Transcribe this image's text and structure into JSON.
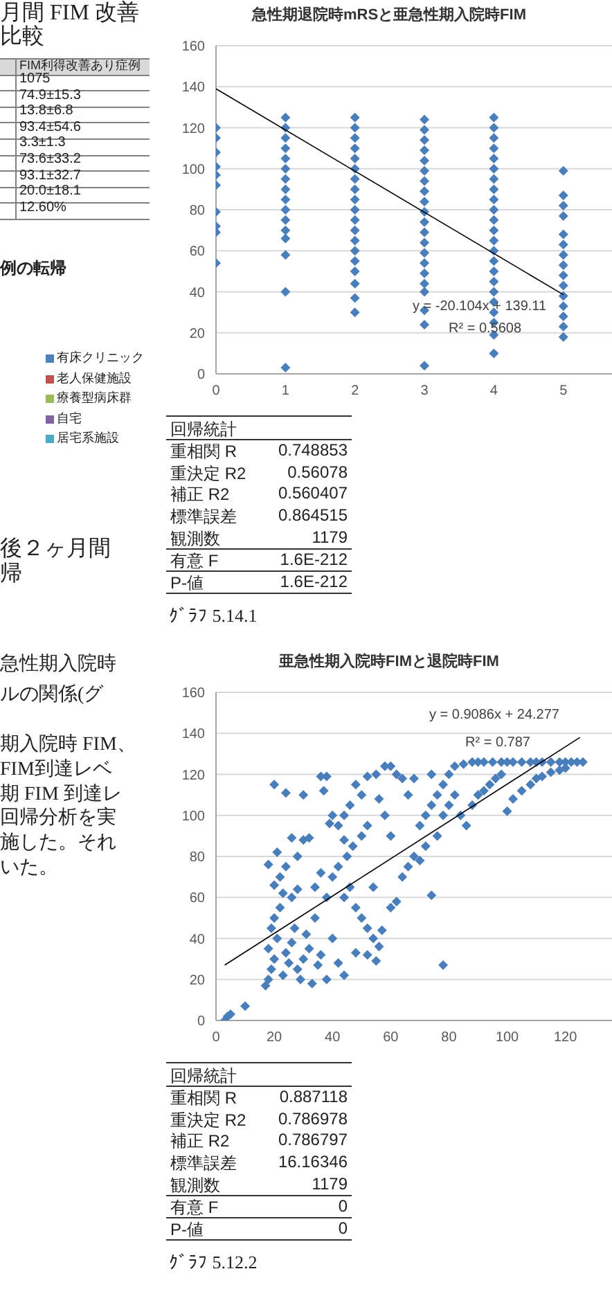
{
  "chart_data": [
    {
      "type": "other",
      "annotations": [
        "月間 FIM 改善",
        "比較",
        "FIM利得改善あり症例",
        "1075",
        "74.9±15.3",
        "13.8±6.8",
        "93.4±54.6",
        "3.3±1.3",
        "73.6±33.2",
        "93.1±32.7",
        "20.0±18.1",
        "12.60%",
        "例の転帰",
        "有床クリニック",
        "老人保健施設",
        "療養型病床群",
        "自宅",
        "居宅系施設",
        "後２ヶ月間",
        "帰",
        "急性期入院時",
        "ルの関係(グ",
        "期入院時 FIM、",
        "FIM到達レベ",
        "期 FIM 到達レ",
        "回帰分析を実",
        "施した。それ",
        "いた。"
      ]
    },
    {
      "type": "scatter",
      "title": "急性期退院時mRSと亜急性期入院時FIM",
      "xlim": [
        0,
        5.7
      ],
      "ylim": [
        0,
        160
      ],
      "xticks": [
        0,
        1,
        2,
        3,
        4,
        5
      ],
      "yticks": [
        0,
        20,
        40,
        60,
        80,
        100,
        120,
        140,
        160
      ],
      "grid": "y",
      "marker": "diamond",
      "series": [
        {
          "type": "scatter",
          "color": "#4a7ebb",
          "x": [
            0,
            0,
            0,
            0,
            0,
            0,
            0,
            0,
            0,
            0,
            1,
            1,
            1,
            1,
            1,
            1,
            1,
            1,
            1,
            1,
            1,
            1,
            1,
            1,
            1,
            1,
            2,
            2,
            2,
            2,
            2,
            2,
            2,
            2,
            2,
            2,
            2,
            2,
            2,
            2,
            2,
            2,
            2,
            2,
            2,
            3,
            3,
            3,
            3,
            3,
            3,
            3,
            3,
            3,
            3,
            3,
            3,
            3,
            3,
            3,
            3,
            3,
            3,
            3,
            3,
            3,
            4,
            4,
            4,
            4,
            4,
            4,
            4,
            4,
            4,
            4,
            4,
            4,
            4,
            4,
            4,
            4,
            4,
            4,
            4,
            4,
            4,
            4,
            4,
            5,
            5,
            5,
            5,
            5,
            5,
            5,
            5,
            5,
            5,
            5,
            5,
            5,
            5,
            5
          ],
          "values": [
            120,
            115,
            108,
            101,
            97,
            92,
            79,
            72,
            69,
            54,
            125,
            120,
            115,
            110,
            105,
            100,
            95,
            90,
            85,
            80,
            75,
            70,
            66,
            58,
            40,
            3,
            125,
            120,
            115,
            110,
            105,
            100,
            95,
            90,
            85,
            80,
            75,
            70,
            65,
            60,
            55,
            50,
            44,
            37,
            30,
            124,
            119,
            114,
            109,
            104,
            99,
            94,
            89,
            84,
            79,
            74,
            69,
            64,
            59,
            54,
            49,
            44,
            40,
            31,
            24,
            4,
            125,
            120,
            115,
            110,
            105,
            100,
            95,
            90,
            85,
            80,
            75,
            70,
            65,
            60,
            55,
            50,
            45,
            40,
            35,
            30,
            25,
            19,
            10,
            99,
            87,
            82,
            77,
            68,
            63,
            58,
            53,
            48,
            43,
            38,
            33,
            28,
            23,
            18
          ]
        },
        {
          "type": "line",
          "color": "#000000",
          "marker": "none",
          "x": [
            0,
            5
          ],
          "values": [
            139,
            38.6
          ]
        }
      ],
      "annotations": [
        "y = -20.104x + 139.11",
        "R² = 0.5608",
        "回帰統計",
        "重相関 R",
        "0.748853",
        "重決定 R2",
        "0.56078",
        "補正 R2",
        "0.560407",
        "標準誤差",
        "0.864515",
        "観測数",
        "1179",
        "有意 F",
        "1.6E-212",
        "P-値",
        "1.6E-212",
        "ｸﾞﾗﾌ 5.14.1"
      ]
    },
    {
      "type": "scatter",
      "title": "亜急性期入院時FIMと退院時FIM",
      "xlim": [
        0,
        136
      ],
      "ylim": [
        0,
        160
      ],
      "xticks": [
        0,
        20,
        40,
        60,
        80,
        100,
        120
      ],
      "yticks": [
        0,
        20,
        40,
        60,
        80,
        100,
        120,
        140,
        160
      ],
      "grid": "y",
      "marker": "diamond",
      "series": [
        {
          "type": "scatter",
          "color": "#4a7ebb",
          "x": [
            17,
            18,
            19,
            20,
            18,
            21,
            19,
            20,
            22,
            23,
            25,
            24,
            26,
            28,
            27,
            30,
            32,
            29,
            33,
            35,
            31,
            36,
            38,
            34,
            22,
            18,
            21,
            24,
            26,
            28,
            20,
            23,
            30,
            32,
            30,
            24,
            20,
            36,
            38,
            37,
            40,
            39,
            42,
            44,
            46,
            48,
            50,
            52,
            55,
            58,
            60,
            62,
            64,
            40,
            42,
            45,
            47,
            50,
            52,
            44,
            46,
            48,
            50,
            52,
            54,
            56,
            48,
            52,
            55,
            57,
            60,
            62,
            64,
            66,
            68,
            70,
            72,
            74,
            76,
            78,
            80,
            82,
            85,
            88,
            90,
            92,
            95,
            98,
            100,
            102,
            105,
            108,
            110,
            112,
            115,
            118,
            120,
            122,
            124,
            126,
            70,
            72,
            74,
            76,
            78,
            80,
            82,
            84,
            86,
            88,
            90,
            92,
            94,
            96,
            98,
            100,
            102,
            105,
            108,
            110,
            112,
            115,
            118,
            120,
            60,
            58,
            56,
            66,
            68,
            74,
            78,
            3,
            4,
            5,
            10,
            54,
            44,
            38,
            34,
            28,
            26,
            36,
            40,
            42,
            44
          ],
          "values": [
            17,
            20,
            25,
            30,
            35,
            40,
            45,
            50,
            55,
            22,
            28,
            33,
            38,
            25,
            45,
            30,
            35,
            20,
            18,
            27,
            42,
            32,
            20,
            50,
            70,
            76,
            82,
            75,
            89,
            80,
            66,
            62,
            88,
            89,
            110,
            111,
            115,
            119,
            119,
            112,
            100,
            96,
            95,
            100,
            105,
            115,
            110,
            119,
            120,
            124,
            124,
            120,
            118,
            70,
            75,
            80,
            85,
            90,
            95,
            60,
            65,
            55,
            50,
            45,
            40,
            36,
            33,
            32,
            29,
            44,
            55,
            58,
            70,
            75,
            80,
            95,
            100,
            105,
            110,
            115,
            120,
            124,
            125,
            126,
            126,
            126,
            126,
            126,
            126,
            126,
            126,
            126,
            126,
            126,
            126,
            126,
            126,
            126,
            126,
            126,
            78,
            85,
            61,
            90,
            100,
            105,
            110,
            100,
            95,
            105,
            110,
            112,
            115,
            118,
            120,
            102,
            108,
            112,
            115,
            118,
            119,
            121,
            122,
            123,
            90,
            100,
            108,
            110,
            118,
            120,
            27,
            0,
            2,
            3,
            7,
            65,
            88,
            60,
            65,
            64,
            60,
            72,
            40,
            28,
            22
          ]
        },
        {
          "type": "line",
          "color": "#000000",
          "marker": "none",
          "x": [
            3,
            125
          ],
          "values": [
            27,
            138
          ]
        }
      ],
      "annotations": [
        "y = 0.9086x + 24.277",
        "R² = 0.787",
        "回帰統計",
        "重相関 R",
        "0.887118",
        "重決定 R2",
        "0.786978",
        "補正 R2",
        "0.786797",
        "標準誤差",
        "16.16346",
        "観測数",
        "1179",
        "有意 F",
        "0",
        "P-値",
        "0",
        "ｸﾞﾗﾌ 5.12.2"
      ]
    }
  ]
}
